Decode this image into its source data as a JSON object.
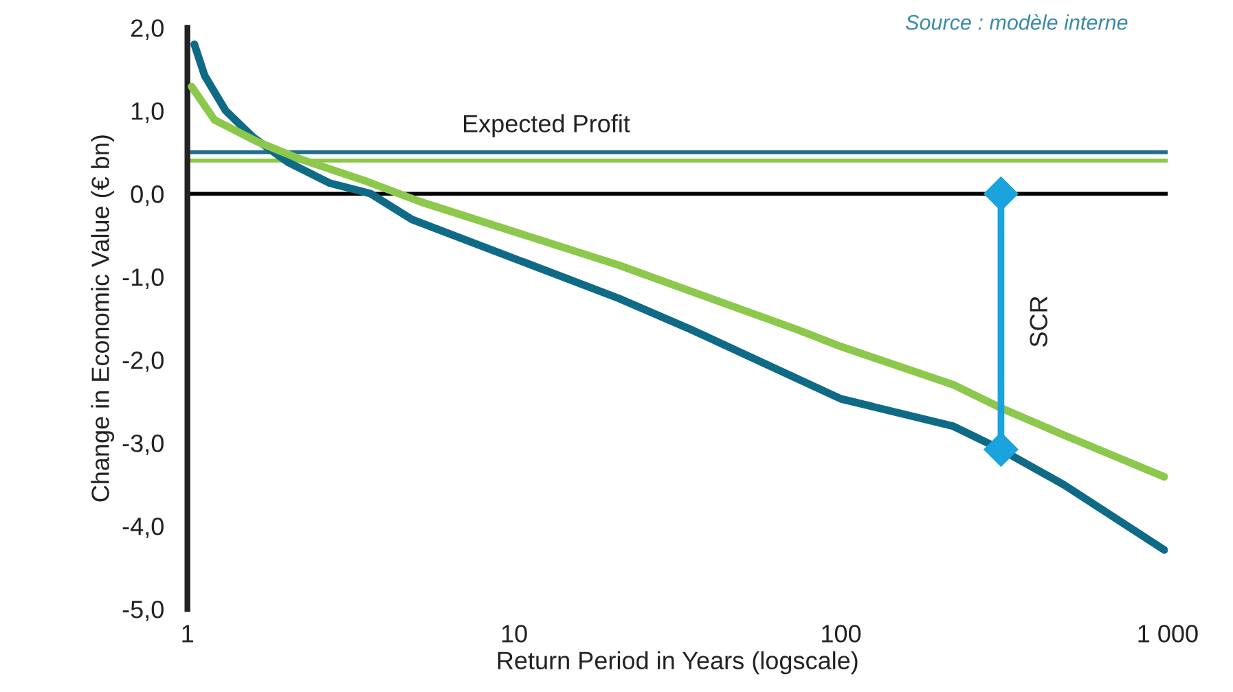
{
  "chart_data": {
    "type": "line",
    "xlabel": "Return Period in Years (logscale)",
    "ylabel": "Change in Economic Value (€ bn)",
    "annotations": [
      "Source : modèle interne"
    ],
    "log": "x",
    "xlim": [
      1,
      1000
    ],
    "xticks": [
      1,
      10,
      100,
      {
        "value": 1000,
        "label": "1 000"
      }
    ],
    "ylim": [
      -5,
      2
    ],
    "yticks": [
      {
        "value": 2,
        "label": "2,0"
      },
      {
        "value": 1,
        "label": "1,0"
      },
      {
        "value": 0,
        "label": "0,0"
      },
      {
        "value": -1,
        "label": "-1,0"
      },
      {
        "value": -2,
        "label": "-2,0"
      },
      {
        "value": -3,
        "label": "-3,0"
      },
      {
        "value": -4,
        "label": "-4,0"
      },
      {
        "value": -5,
        "label": "-5,0"
      }
    ],
    "grid": false,
    "legend": false,
    "marker": "none",
    "line_style": "solid",
    "ref_lines": [
      {
        "axis": "y",
        "value": 0.5,
        "label": "Expected Profit",
        "color": "#1f6e8c"
      },
      {
        "axis": "y",
        "value": 0.4,
        "label": null,
        "color": "#8cc84b"
      },
      {
        "axis": "y",
        "value": 0,
        "label": null,
        "color": "#000000"
      }
    ],
    "series": [
      {
        "color": "#0f6a86",
        "x": [
          1.05,
          1.13,
          1.31,
          1.59,
          2.03,
          2.72,
          3.64,
          4.87,
          20.9,
          35,
          100,
          221,
          309,
          484,
          977
        ],
        "values": [
          1.8,
          1.42,
          1.0,
          0.68,
          0.38,
          0.13,
          0.0,
          -0.31,
          -1.26,
          -1.64,
          -2.47,
          -2.8,
          -3.08,
          -3.51,
          -4.29
        ]
      },
      {
        "color": "#8cc84b",
        "x": [
          1.03,
          1.21,
          1.63,
          2.17,
          3.53,
          5.2,
          20.9,
          74,
          100,
          221,
          309,
          484,
          977
        ],
        "values": [
          1.29,
          0.89,
          0.63,
          0.43,
          0.15,
          -0.1,
          -0.86,
          -1.64,
          -1.84,
          -2.3,
          -2.58,
          -2.91,
          -3.41
        ]
      },
      {
        "name": "SCR",
        "color": "#1aa3dc",
        "marker": "diamond",
        "x": [
          309,
          309
        ],
        "values": [
          0,
          -3.08
        ]
      }
    ]
  }
}
